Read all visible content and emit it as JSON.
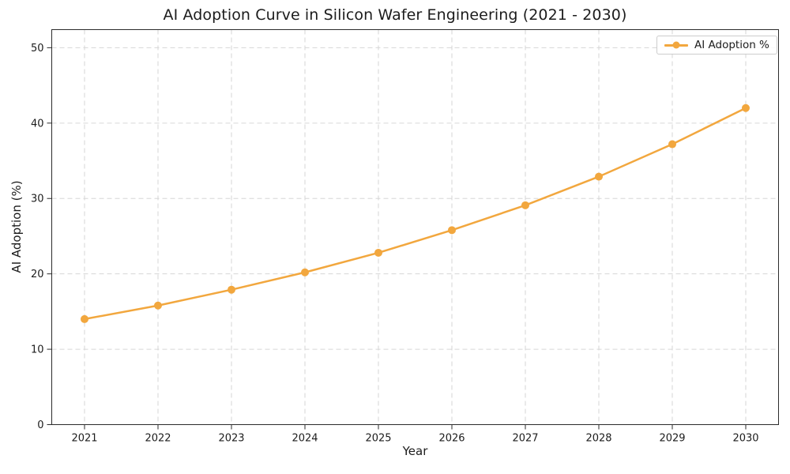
{
  "chart_data": {
    "type": "line",
    "title": "AI Adoption Curve in Silicon Wafer Engineering (2021 - 2030)",
    "xlabel": "Year",
    "ylabel": "AI Adoption (%)",
    "x": [
      2021,
      2022,
      2023,
      2024,
      2025,
      2026,
      2027,
      2028,
      2029,
      2030
    ],
    "xticklabels": [
      "2021",
      "2022",
      "2023",
      "2024",
      "2025",
      "2026",
      "2027",
      "2028",
      "2029",
      "2030"
    ],
    "yticks": [
      0,
      10,
      20,
      30,
      40,
      50
    ],
    "yticklabels": [
      "0",
      "10",
      "20",
      "30",
      "40",
      "50"
    ],
    "ylim": [
      0,
      52.4
    ],
    "grid": true,
    "grid_style": "dashed",
    "legend": {
      "position": "upper right",
      "label": "AI Adoption %"
    },
    "series": [
      {
        "name": "AI Adoption %",
        "values": [
          14.0,
          15.8,
          17.9,
          20.2,
          22.8,
          25.8,
          29.1,
          32.9,
          37.2,
          42.0
        ],
        "color": "#F2A73E",
        "marker": "circle",
        "linestyle": "solid"
      }
    ]
  },
  "style": {
    "background": "#ffffff",
    "line_color": "#F2A73E",
    "grid_color": "#d6d6d6",
    "spine_color": "#2b2b2b",
    "tick_color": "#2b2b2b",
    "text_color": "#1c1c1c",
    "legend_border": "#cccccc"
  }
}
